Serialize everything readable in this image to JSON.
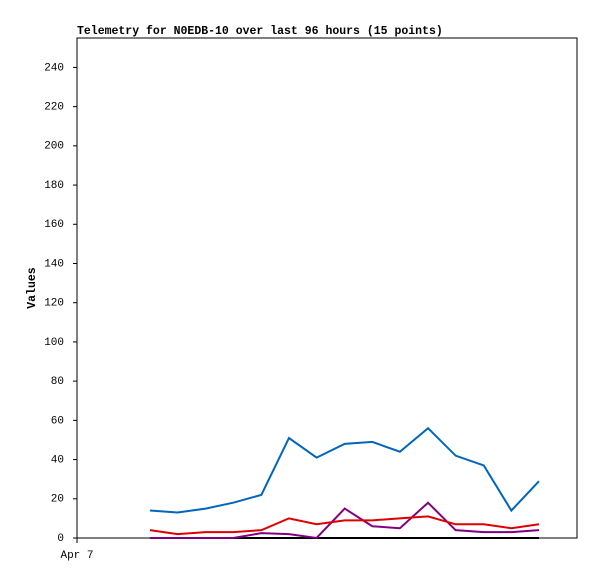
{
  "chart_data": {
    "type": "line",
    "title": "Telemetry for N0EDB-10 over last 96 hours (15 points)",
    "y_label": "Values",
    "x": [
      14,
      19.3,
      24.7,
      30,
      35.4,
      40.7,
      46,
      51.4,
      56.7,
      62,
      67.4,
      72.7,
      78.1,
      83.4,
      88.7
    ],
    "xlim": [
      0,
      96
    ],
    "xticks": [
      {
        "value": 0,
        "label": "Apr 7"
      }
    ],
    "ylim": [
      0,
      255
    ],
    "yticks": [
      0,
      20,
      40,
      60,
      80,
      100,
      120,
      140,
      160,
      180,
      200,
      220,
      240
    ],
    "series": [
      {
        "color": "#000000",
        "values": [
          0,
          0,
          0,
          0,
          0,
          0,
          0,
          0,
          0,
          0,
          0,
          0,
          0,
          0,
          0
        ]
      },
      {
        "color": "#800080",
        "values": [
          0,
          0,
          0,
          0,
          2.5,
          2,
          0,
          15,
          6,
          5,
          18,
          4,
          3,
          3,
          4
        ]
      },
      {
        "color": "#dd0000",
        "values": [
          4,
          2,
          3,
          3,
          4,
          10,
          7,
          9,
          9,
          10,
          11,
          7,
          7,
          5,
          7
        ]
      },
      {
        "color": "#0066bb",
        "values": [
          14,
          13,
          15,
          18,
          22,
          51,
          41,
          48,
          49,
          44,
          56,
          42,
          37,
          14,
          29
        ]
      }
    ]
  }
}
